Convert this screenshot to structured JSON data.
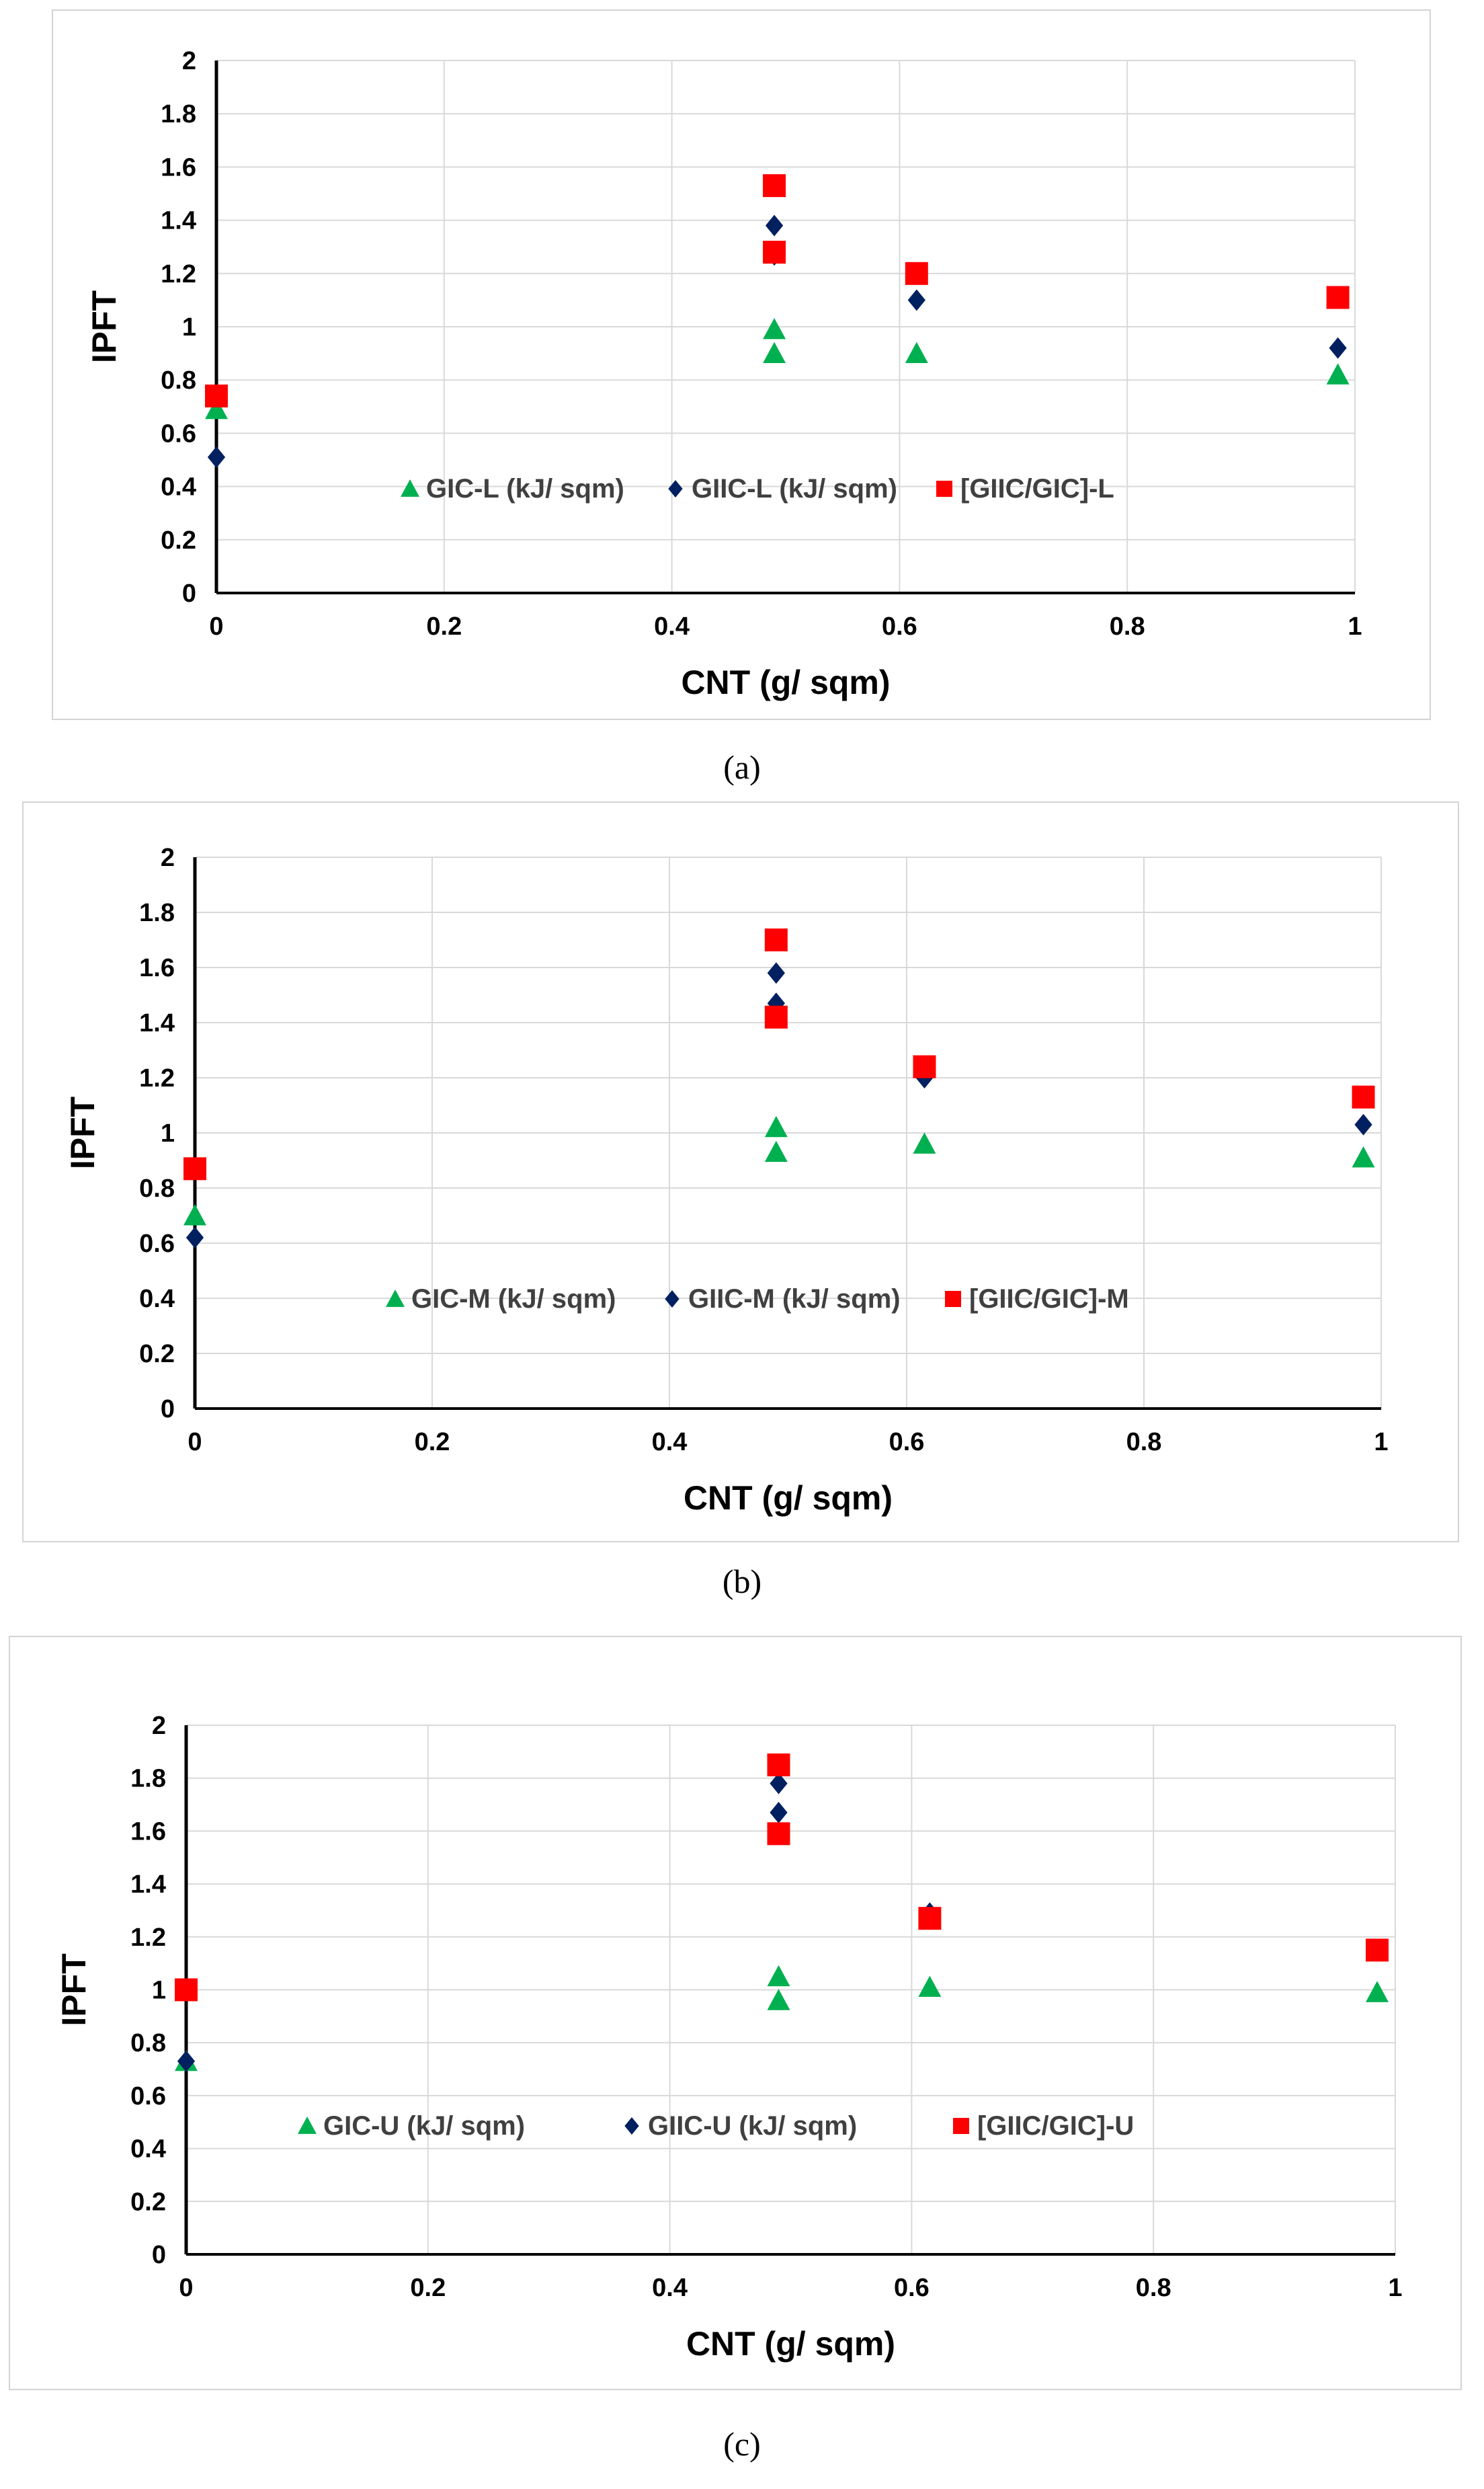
{
  "chart_data": [
    {
      "type": "scatter",
      "title": "",
      "xlabel": "CNT (g/ sqm)",
      "ylabel": "IPFT",
      "xlim": [
        0,
        1
      ],
      "ylim": [
        0,
        2
      ],
      "x_ticks": [
        "0",
        "0.2",
        "0.4",
        "0.6",
        "0.8",
        "1"
      ],
      "y_ticks": [
        "0",
        "0.2",
        "0.4",
        "0.6",
        "0.8",
        "1",
        "1.2",
        "1.4",
        "1.6",
        "1.8",
        "2"
      ],
      "grid": true,
      "legend_position": "middle",
      "caption": "(a)",
      "series": [
        {
          "name": "GIC-L (kJ/ sqm)",
          "marker": "triangle",
          "color": "#00B050",
          "points": [
            [
              0,
              0.69
            ],
            [
              0.49,
              0.99
            ],
            [
              0.49,
              0.9
            ],
            [
              0.615,
              0.9
            ],
            [
              0.985,
              0.82
            ]
          ]
        },
        {
          "name": "GIIC-L (kJ/ sqm)",
          "marker": "diamond",
          "color": "#002060",
          "points": [
            [
              0,
              0.51
            ],
            [
              0.49,
              1.38
            ],
            [
              0.49,
              1.27
            ],
            [
              0.615,
              1.1
            ],
            [
              0.985,
              0.92
            ]
          ]
        },
        {
          "name": "[GIIC/GIC]-L",
          "marker": "square",
          "color": "#FF0000",
          "points": [
            [
              0,
              0.74
            ],
            [
              0.49,
              1.53
            ],
            [
              0.49,
              1.28
            ],
            [
              0.615,
              1.2
            ],
            [
              0.985,
              1.11
            ]
          ]
        }
      ]
    },
    {
      "type": "scatter",
      "title": "",
      "xlabel": "CNT (g/ sqm)",
      "ylabel": "IPFT",
      "xlim": [
        0,
        1
      ],
      "ylim": [
        0,
        2
      ],
      "x_ticks": [
        "0",
        "0.2",
        "0.4",
        "0.6",
        "0.8",
        "1"
      ],
      "y_ticks": [
        "0",
        "0.2",
        "0.4",
        "0.6",
        "0.8",
        "1",
        "1.2",
        "1.4",
        "1.6",
        "1.8",
        "2"
      ],
      "grid": true,
      "legend_position": "middle",
      "caption": "(b)",
      "series": [
        {
          "name": "GIC-M (kJ/ sqm)",
          "marker": "triangle",
          "color": "#00B050",
          "points": [
            [
              0,
              0.7
            ],
            [
              0.49,
              1.02
            ],
            [
              0.49,
              0.93
            ],
            [
              0.615,
              0.96
            ],
            [
              0.985,
              0.91
            ]
          ]
        },
        {
          "name": "GIIC-M (kJ/ sqm)",
          "marker": "diamond",
          "color": "#002060",
          "points": [
            [
              0,
              0.62
            ],
            [
              0.49,
              1.58
            ],
            [
              0.49,
              1.47
            ],
            [
              0.615,
              1.2
            ],
            [
              0.985,
              1.03
            ]
          ]
        },
        {
          "name": "[GIIC/GIC]-M",
          "marker": "square",
          "color": "#FF0000",
          "points": [
            [
              0,
              0.87
            ],
            [
              0.49,
              1.7
            ],
            [
              0.49,
              1.42
            ],
            [
              0.615,
              1.24
            ],
            [
              0.985,
              1.13
            ]
          ]
        }
      ]
    },
    {
      "type": "scatter",
      "title": "",
      "xlabel": "CNT (g/ sqm)",
      "ylabel": "IPFT",
      "xlim": [
        0,
        1
      ],
      "ylim": [
        0,
        2
      ],
      "x_ticks": [
        "0",
        "0.2",
        "0.4",
        "0.6",
        "0.8",
        "1"
      ],
      "y_ticks": [
        "0",
        "0.2",
        "0.4",
        "0.6",
        "0.8",
        "1",
        "1.2",
        "1.4",
        "1.6",
        "1.8",
        "2"
      ],
      "grid": true,
      "legend_position": "middle",
      "caption": "(c)",
      "series": [
        {
          "name": "GIC-U (kJ/ sqm)",
          "marker": "triangle",
          "color": "#00B050",
          "points": [
            [
              0,
              0.73
            ],
            [
              0.49,
              1.05
            ],
            [
              0.49,
              0.96
            ],
            [
              0.615,
              1.01
            ],
            [
              0.985,
              0.99
            ]
          ]
        },
        {
          "name": "GIIC-U (kJ/ sqm)",
          "marker": "diamond",
          "color": "#002060",
          "points": [
            [
              0,
              0.73
            ],
            [
              0.49,
              1.78
            ],
            [
              0.49,
              1.67
            ],
            [
              0.615,
              1.29
            ],
            [
              0.985,
              1.15
            ]
          ]
        },
        {
          "name": "[GIIC/GIC]-U",
          "marker": "square",
          "color": "#FF0000",
          "points": [
            [
              0,
              1.0
            ],
            [
              0.49,
              1.85
            ],
            [
              0.49,
              1.59
            ],
            [
              0.615,
              1.27
            ],
            [
              0.985,
              1.15
            ]
          ]
        }
      ]
    }
  ]
}
